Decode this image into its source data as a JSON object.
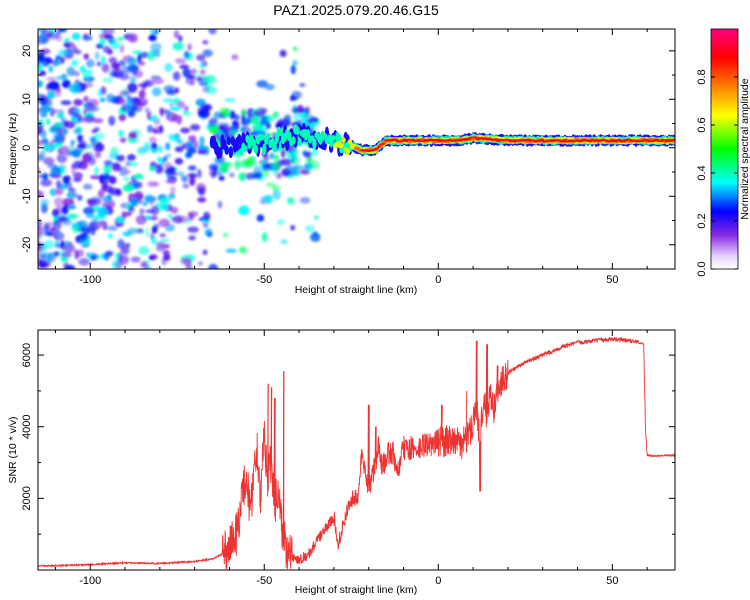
{
  "chart_data": [
    {
      "type": "heatmap",
      "title": "PAZ1.2025.079.20.46.G15",
      "xlabel": "Height of straight line (km)",
      "ylabel": "Frequency (Hz)",
      "xlim": [
        -115,
        68
      ],
      "ylim": [
        -25,
        24.5
      ],
      "xticks": [
        -100,
        -50,
        0,
        50
      ],
      "yticks": [
        -20,
        -10,
        0,
        10,
        20
      ],
      "grid": false,
      "colorbar": {
        "label": "Normalized spectral amplitude",
        "range": [
          0,
          1
        ],
        "ticks": [
          0,
          0.2,
          0.4,
          0.6,
          0.8
        ],
        "tick_labels": [
          "0.0",
          "0.2",
          "0.4",
          "0.6",
          "0.8"
        ],
        "colormap": [
          "#ffffff",
          "#8a2be2",
          "#0000ff",
          "#00ffff",
          "#00ff00",
          "#ffff00",
          "#ff7f00",
          "#ff0000",
          "#ff0080"
        ]
      },
      "ridge": {
        "x": [
          -65,
          -60,
          -55,
          -50,
          -45,
          -40,
          -35,
          -30,
          -25,
          -22,
          -18,
          -15,
          -10,
          -5,
          0,
          5,
          10,
          20,
          40,
          60,
          68
        ],
        "y": [
          0,
          0,
          0.5,
          1,
          2,
          2.5,
          2,
          1,
          0.5,
          -0.5,
          -0.5,
          1.5,
          1.5,
          1.5,
          1.5,
          1.5,
          2,
          1.5,
          1.5,
          1.5,
          1.5
        ],
        "amplitude": [
          0.3,
          0.35,
          0.4,
          0.4,
          0.45,
          0.45,
          0.5,
          0.6,
          0.7,
          0.9,
          0.9,
          0.95,
          0.95,
          0.95,
          0.95,
          0.95,
          0.95,
          0.95,
          0.95,
          0.9,
          0.9
        ]
      },
      "noise_region": {
        "x": [
          -115,
          -45
        ],
        "y": [
          -25,
          24.5
        ],
        "amplitude": [
          0.1,
          0.4
        ]
      }
    },
    {
      "type": "line",
      "xlabel": "Height of straight line (km)",
      "ylabel": "SNR (10 * v/v)",
      "xlim": [
        -115,
        68
      ],
      "ylim": [
        0,
        6700
      ],
      "xticks": [
        -100,
        -50,
        0,
        50
      ],
      "yticks": [
        2000,
        4000,
        6000
      ],
      "grid": false,
      "color": "#ee3333",
      "series": [
        {
          "x": [
            -115,
            -100,
            -90,
            -80,
            -70,
            -65,
            -62,
            -60,
            -58,
            -56,
            -55,
            -54,
            -53,
            -52,
            -51,
            -50,
            -49,
            -48,
            -47,
            -46,
            -45,
            -44,
            -43,
            -42,
            -40,
            -37,
            -35,
            -32,
            -30,
            -29,
            -27,
            -25,
            -23,
            -22,
            -20,
            -18,
            -17,
            -16,
            -15,
            -13,
            -12,
            -10,
            -8,
            -6,
            -4,
            -2,
            0,
            2,
            4,
            6,
            8,
            9,
            10,
            11,
            12,
            13,
            14,
            15,
            16,
            18,
            20,
            25,
            30,
            35,
            40,
            45,
            50,
            55,
            58,
            59,
            59.5,
            60,
            62,
            65,
            68
          ],
          "y": [
            110,
            150,
            200,
            180,
            240,
            300,
            450,
            700,
            1000,
            2300,
            2600,
            1500,
            2800,
            3400,
            2000,
            3800,
            2600,
            3000,
            1800,
            2400,
            1200,
            700,
            400,
            350,
            300,
            450,
            800,
            1200,
            1500,
            700,
            1400,
            2000,
            2000,
            3300,
            2200,
            3000,
            3500,
            2800,
            3200,
            3300,
            2600,
            3400,
            3400,
            3300,
            3500,
            3500,
            3600,
            3600,
            3700,
            3500,
            3600,
            3800,
            4200,
            4600,
            3600,
            4800,
            4200,
            5000,
            4500,
            5200,
            5500,
            5800,
            6000,
            6200,
            6350,
            6400,
            6450,
            6400,
            6350,
            6300,
            4000,
            3200,
            3180,
            3200,
            3200
          ],
          "spikes": [
            {
              "x": -49,
              "y": 5200
            },
            {
              "x": -48,
              "y": 5100
            },
            {
              "x": -47,
              "y": 4800
            },
            {
              "x": -44.5,
              "y": 5550
            },
            {
              "x": -20,
              "y": 4600
            },
            {
              "x": -18,
              "y": 4000
            },
            {
              "x": 1,
              "y": 4600
            },
            {
              "x": 8,
              "y": 5000
            },
            {
              "x": 11,
              "y": 6400
            },
            {
              "x": 12,
              "y": 2200
            },
            {
              "x": 14,
              "y": 6300
            },
            {
              "x": 17,
              "y": 5700
            }
          ]
        }
      ]
    }
  ]
}
